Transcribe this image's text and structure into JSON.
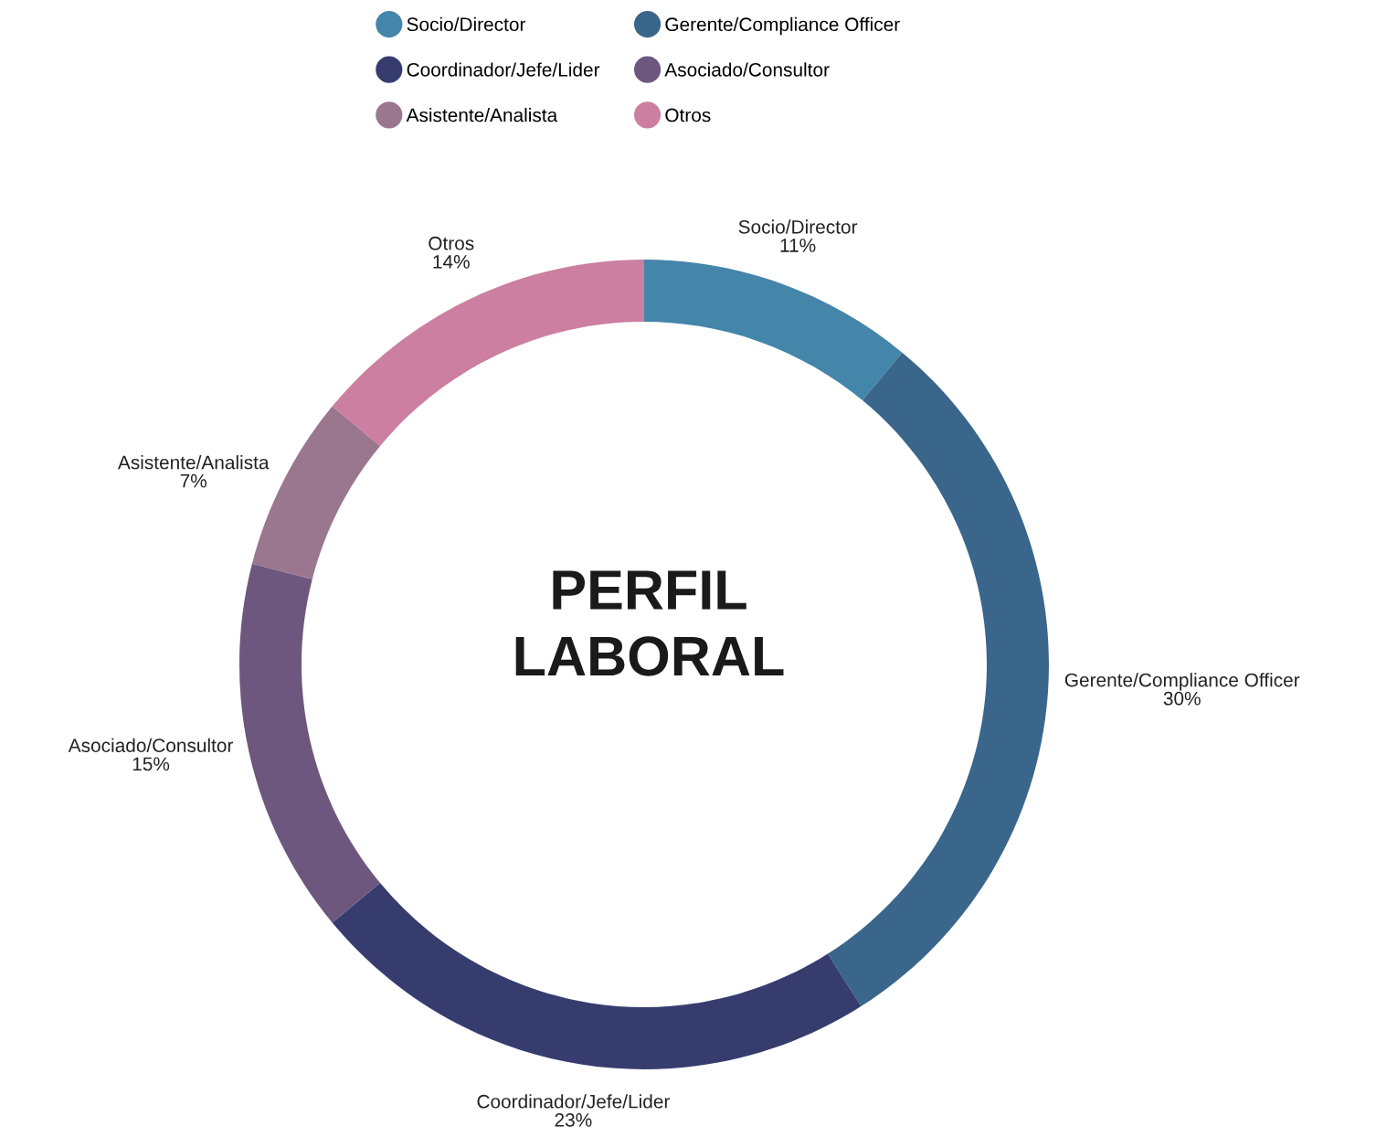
{
  "chart_data": {
    "type": "donut",
    "title": "PERFIL\nLABORAL",
    "categories": [
      "Socio/Director",
      "Gerente/Compliance Officer",
      "Coordinador/Jefe/Lider",
      "Asociado/Consultor",
      "Asistente/Analista",
      "Otros"
    ],
    "values": [
      11,
      30,
      23,
      15,
      7,
      14
    ],
    "value_labels": [
      "11%",
      "30%",
      "23%",
      "15%",
      "7%",
      "14%"
    ],
    "colors": [
      "#4485aa",
      "#3a668b",
      "#363d6e",
      "#6e577e",
      "#9a768f",
      "#cc7fa0"
    ],
    "legend": "top"
  }
}
